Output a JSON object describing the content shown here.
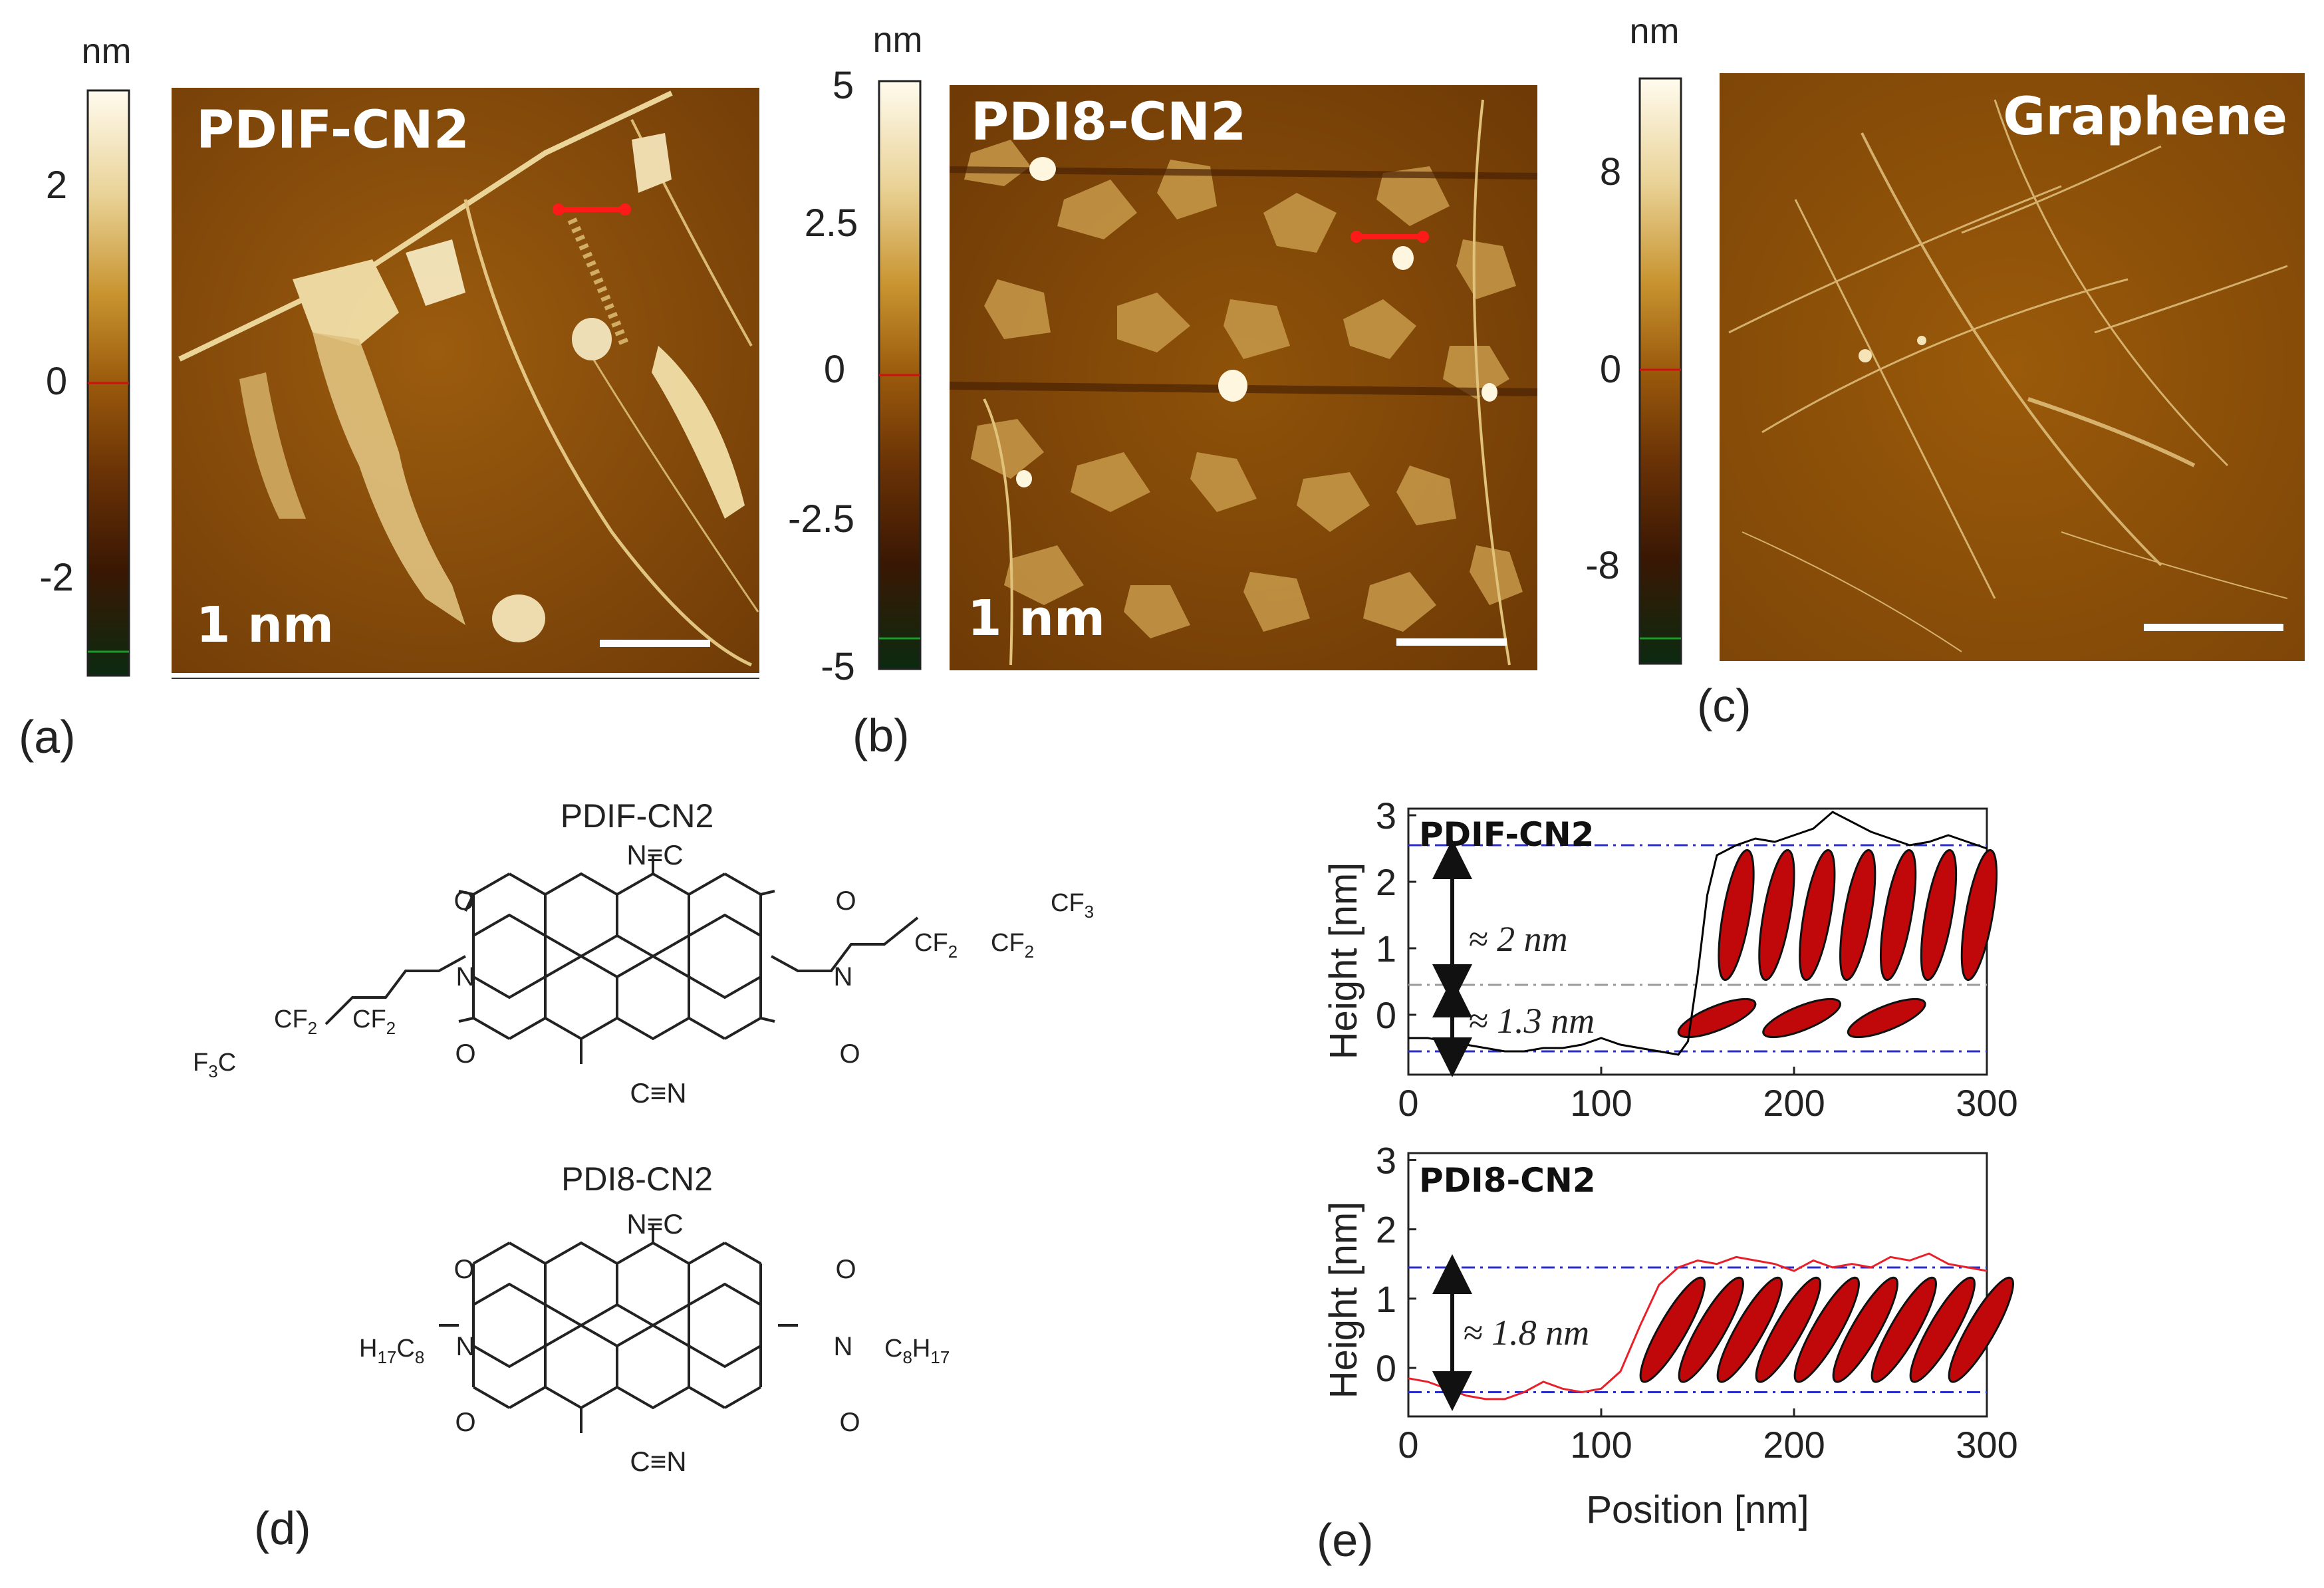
{
  "panels": {
    "a": {
      "label": "(a)",
      "title": "PDIF-CN2",
      "scale_text": "1 nm",
      "colorbar": {
        "unit": "nm",
        "ticks": [
          "2",
          "0",
          "-2"
        ]
      }
    },
    "b": {
      "label": "(b)",
      "title": "PDI8-CN2",
      "scale_text": "1 nm",
      "colorbar": {
        "unit": "nm",
        "ticks": [
          "5",
          "2.5",
          "0",
          "-2.5",
          "-5"
        ]
      }
    },
    "c": {
      "label": "(c)",
      "title": "Graphene",
      "colorbar": {
        "unit": "nm",
        "ticks": [
          "8",
          "0",
          "-8"
        ]
      }
    },
    "d": {
      "label": "(d)",
      "molecule1": {
        "name": "PDIF-CN2",
        "top_group": "N≡C",
        "bottom_group": "C≡N",
        "O": "O",
        "N": "N",
        "chain_right_1": "CF",
        "chain_right_2": "CF",
        "chain_right_3": "CF",
        "chain_left_1": "CF",
        "chain_left_2": "CF",
        "chain_left_3": "F",
        "chain_left_3b": "C",
        "sub2": "2",
        "sub3": "3"
      },
      "molecule2": {
        "name": "PDI8-CN2",
        "top_group": "N≡C",
        "bottom_group": "C≡N",
        "left_chain_a": "H",
        "left_chain_sub1": "17",
        "left_chain_b": "C",
        "left_chain_sub2": "8",
        "right_chain_a": "C",
        "right_chain_sub1": "8",
        "right_chain_b": "H",
        "right_chain_sub2": "17"
      }
    },
    "e": {
      "label": "(e)",
      "ylabel": "Height [nm]",
      "xlabel": "Position [nm]",
      "xticks": [
        "0",
        "100",
        "200",
        "300"
      ],
      "yticks": [
        "0",
        "1",
        "2",
        "3"
      ],
      "top_title": "PDIF-CN2",
      "bottom_title": "PDI8-CN2",
      "ann_top_1": "≈ 2 nm",
      "ann_top_2": "≈ 1.3 nm",
      "ann_bottom": "≈ 1.8 nm"
    }
  },
  "chart_data": [
    {
      "type": "line",
      "title": "PDIF-CN2",
      "xlabel": "Position [nm]",
      "ylabel": "Height [nm]",
      "xlim": [
        0,
        300
      ],
      "ylim": [
        -0.9,
        3.1
      ],
      "series": [
        {
          "color": "#000000",
          "x": [
            0,
            10,
            20,
            30,
            40,
            50,
            60,
            70,
            80,
            90,
            100,
            110,
            120,
            130,
            140,
            145,
            150,
            155,
            160,
            170,
            180,
            190,
            200,
            210,
            220,
            230,
            240,
            250,
            260,
            270,
            280,
            290,
            300
          ],
          "y": [
            -0.35,
            -0.35,
            -0.4,
            -0.45,
            -0.5,
            -0.55,
            -0.55,
            -0.5,
            -0.5,
            -0.45,
            -0.35,
            -0.45,
            -0.5,
            -0.55,
            -0.6,
            -0.4,
            0.6,
            1.8,
            2.4,
            2.55,
            2.65,
            2.6,
            2.7,
            2.8,
            3.05,
            2.9,
            2.75,
            2.65,
            2.55,
            2.6,
            2.7,
            2.6,
            2.5
          ]
        }
      ],
      "reference_lines_y": [
        2.55,
        0.45,
        -0.55
      ]
    },
    {
      "type": "line",
      "title": "PDI8-CN2",
      "xlabel": "Position [nm]",
      "ylabel": "Height [nm]",
      "xlim": [
        0,
        300
      ],
      "ylim": [
        -0.7,
        3.1
      ],
      "series": [
        {
          "color": "#e8202a",
          "x": [
            0,
            10,
            20,
            30,
            40,
            50,
            60,
            70,
            80,
            90,
            100,
            110,
            120,
            130,
            140,
            150,
            160,
            170,
            180,
            190,
            200,
            210,
            220,
            230,
            240,
            250,
            260,
            270,
            280,
            290,
            300
          ],
          "y": [
            -0.15,
            -0.2,
            -0.3,
            -0.4,
            -0.45,
            -0.45,
            -0.35,
            -0.2,
            -0.3,
            -0.35,
            -0.3,
            -0.05,
            0.6,
            1.2,
            1.45,
            1.55,
            1.5,
            1.6,
            1.55,
            1.5,
            1.4,
            1.55,
            1.45,
            1.5,
            1.45,
            1.6,
            1.55,
            1.65,
            1.5,
            1.45,
            1.4
          ]
        }
      ],
      "reference_lines_y": [
        1.45,
        -0.35
      ]
    }
  ],
  "colors": {
    "afm_dark": "#2a1200",
    "afm_mid": "#8a4f08",
    "afm_light": "#e3c06a",
    "molecule_red": "#c0080b",
    "dashdot_blue": "#2a2ec8",
    "marker_red": "#ff1a1a"
  }
}
